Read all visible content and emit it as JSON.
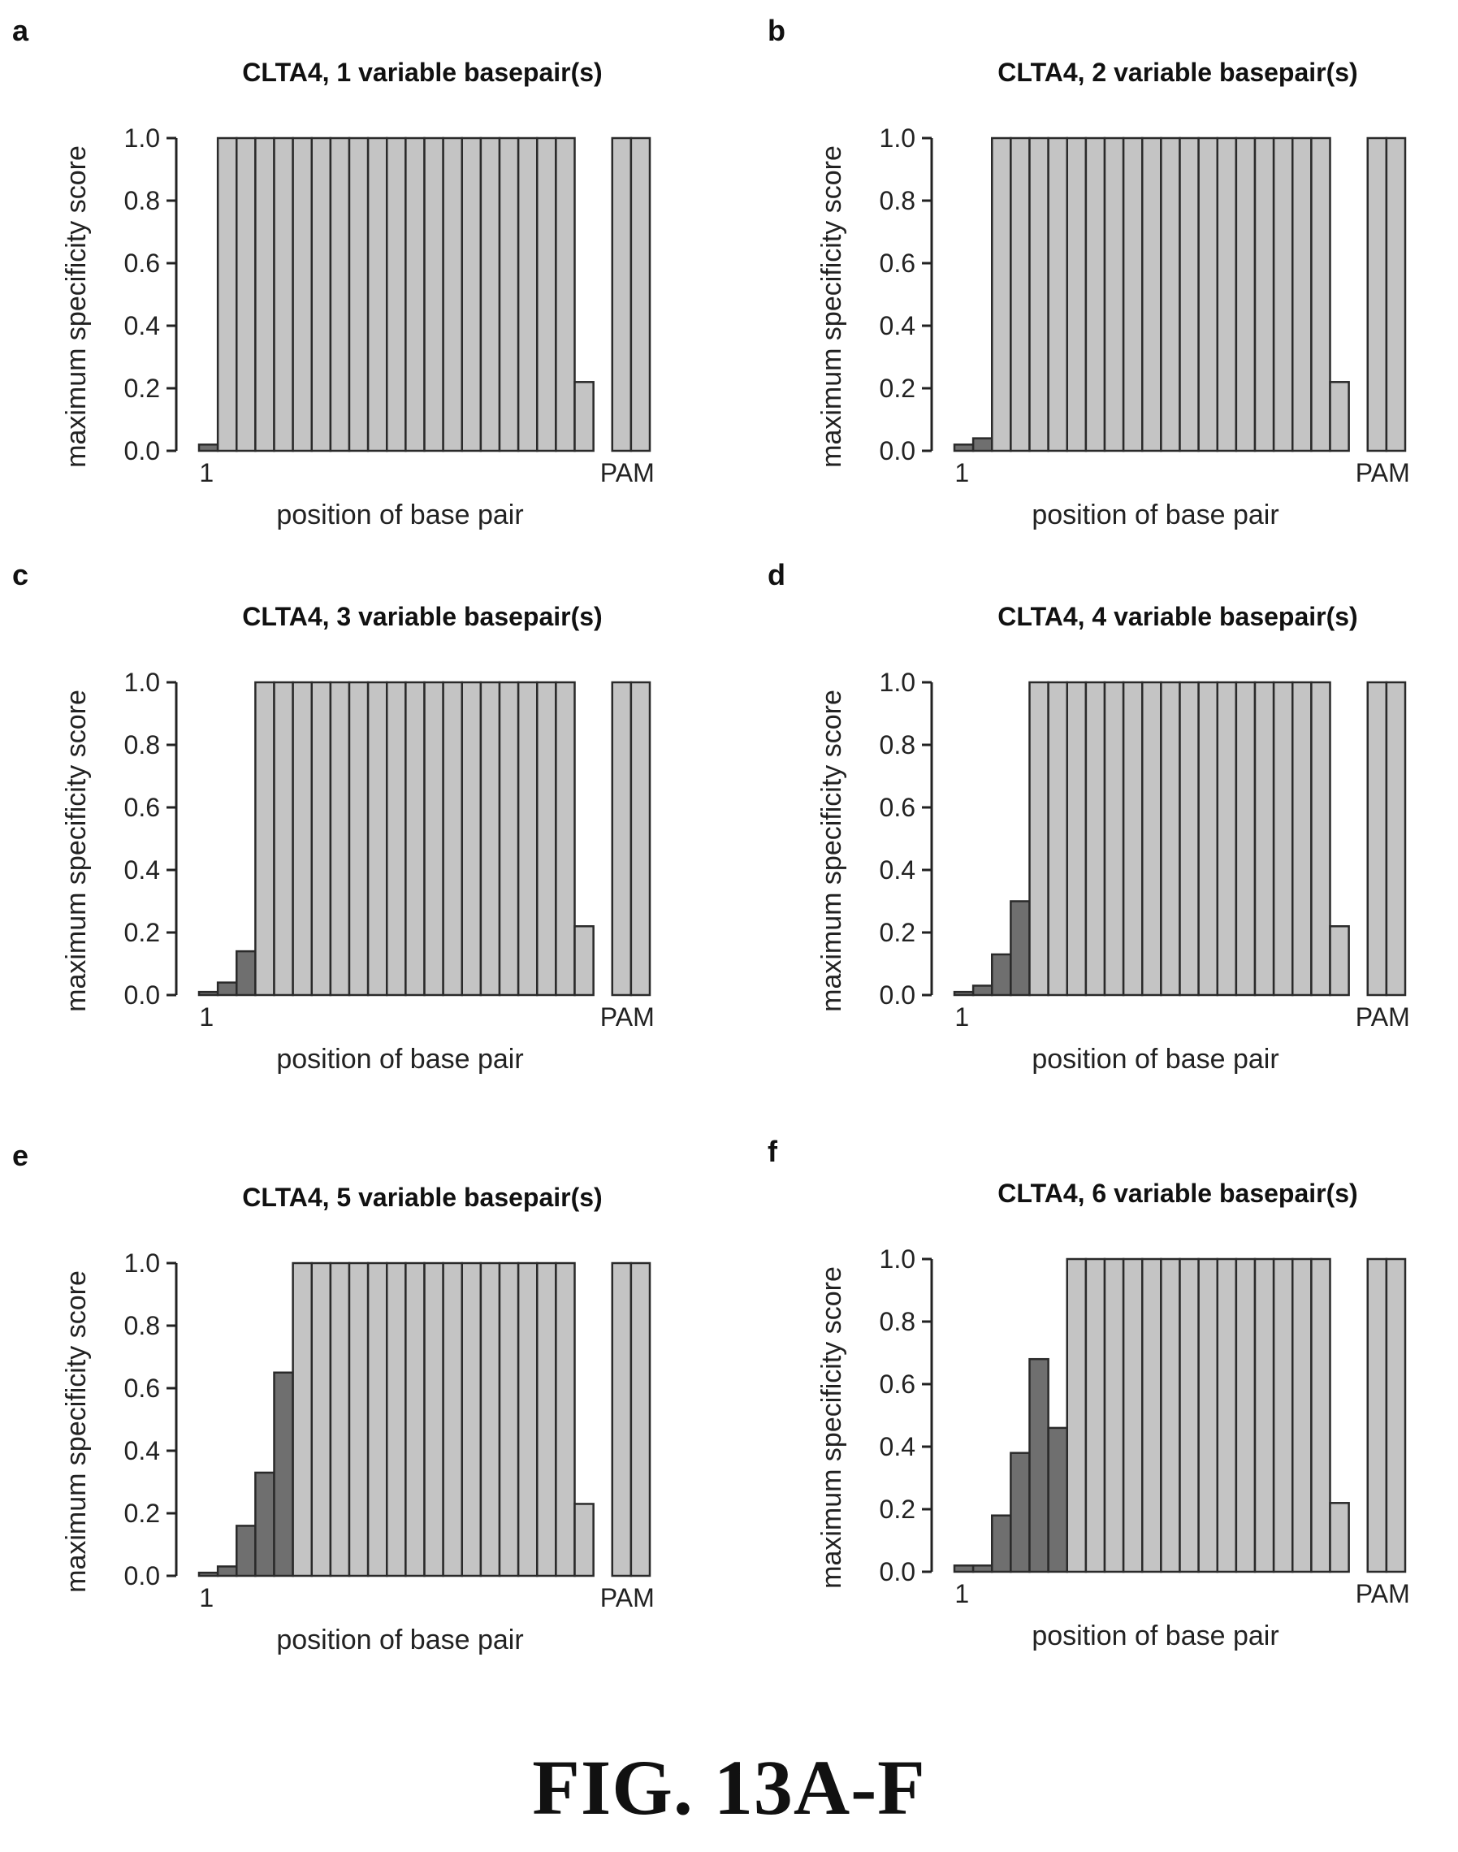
{
  "figure_caption": "FIG. 13A-F",
  "colors": {
    "bar_light": "#c4c4c4",
    "bar_dark": "#6f6f6f",
    "bar_stroke": "#2a2a2a",
    "axis": "#222222"
  },
  "chart_data": [
    {
      "panel": "a",
      "type": "bar",
      "title": "CLTA4, 1 variable basepair(s)",
      "xlabel": "position of base pair",
      "ylabel": "maximum specificity score",
      "x_tick_labels": [
        "1",
        "PAM"
      ],
      "yticks": [
        "0.0",
        "0.2",
        "0.4",
        "0.6",
        "0.8",
        "1.0"
      ],
      "ylim": [
        0,
        1.0
      ],
      "values": [
        0.02,
        1,
        1,
        1,
        1,
        1,
        1,
        1,
        1,
        1,
        1,
        1,
        1,
        1,
        1,
        1,
        1,
        1,
        1,
        1,
        0.22,
        null,
        1,
        1
      ],
      "variable_count": 1
    },
    {
      "panel": "b",
      "type": "bar",
      "title": "CLTA4, 2 variable basepair(s)",
      "xlabel": "position of base pair",
      "ylabel": "maximum specificity score",
      "x_tick_labels": [
        "1",
        "PAM"
      ],
      "yticks": [
        "0.0",
        "0.2",
        "0.4",
        "0.6",
        "0.8",
        "1.0"
      ],
      "ylim": [
        0,
        1.0
      ],
      "values": [
        0.02,
        0.04,
        1,
        1,
        1,
        1,
        1,
        1,
        1,
        1,
        1,
        1,
        1,
        1,
        1,
        1,
        1,
        1,
        1,
        1,
        0.22,
        null,
        1,
        1
      ],
      "variable_count": 2
    },
    {
      "panel": "c",
      "type": "bar",
      "title": "CLTA4, 3 variable basepair(s)",
      "xlabel": "position of base pair",
      "ylabel": "maximum specificity score",
      "x_tick_labels": [
        "1",
        "PAM"
      ],
      "yticks": [
        "0.0",
        "0.2",
        "0.4",
        "0.6",
        "0.8",
        "1.0"
      ],
      "ylim": [
        0,
        1.0
      ],
      "values": [
        0.01,
        0.04,
        0.14,
        1,
        1,
        1,
        1,
        1,
        1,
        1,
        1,
        1,
        1,
        1,
        1,
        1,
        1,
        1,
        1,
        1,
        0.22,
        null,
        1,
        1
      ],
      "variable_count": 3
    },
    {
      "panel": "d",
      "type": "bar",
      "title": "CLTA4, 4 variable basepair(s)",
      "xlabel": "position of base pair",
      "ylabel": "maximum specificity score",
      "x_tick_labels": [
        "1",
        "PAM"
      ],
      "yticks": [
        "0.0",
        "0.2",
        "0.4",
        "0.6",
        "0.8",
        "1.0"
      ],
      "ylim": [
        0,
        1.0
      ],
      "values": [
        0.01,
        0.03,
        0.13,
        0.3,
        1,
        1,
        1,
        1,
        1,
        1,
        1,
        1,
        1,
        1,
        1,
        1,
        1,
        1,
        1,
        1,
        0.22,
        null,
        1,
        1
      ],
      "variable_count": 4
    },
    {
      "panel": "e",
      "type": "bar",
      "title": "CLTA4, 5 variable basepair(s)",
      "xlabel": "position of base pair",
      "ylabel": "maximum specificity score",
      "x_tick_labels": [
        "1",
        "PAM"
      ],
      "yticks": [
        "0.0",
        "0.2",
        "0.4",
        "0.6",
        "0.8",
        "1.0"
      ],
      "ylim": [
        0,
        1.0
      ],
      "values": [
        0.01,
        0.03,
        0.16,
        0.33,
        0.65,
        1,
        1,
        1,
        1,
        1,
        1,
        1,
        1,
        1,
        1,
        1,
        1,
        1,
        1,
        1,
        0.23,
        null,
        1,
        1
      ],
      "variable_count": 5
    },
    {
      "panel": "f",
      "type": "bar",
      "title": "CLTA4, 6 variable basepair(s)",
      "xlabel": "position of base pair",
      "ylabel": "maximum specificity score",
      "x_tick_labels": [
        "1",
        "PAM"
      ],
      "yticks": [
        "0.0",
        "0.2",
        "0.4",
        "0.6",
        "0.8",
        "1.0"
      ],
      "ylim": [
        0,
        1.0
      ],
      "values": [
        0.02,
        0.02,
        0.18,
        0.38,
        0.68,
        0.46,
        1,
        1,
        1,
        1,
        1,
        1,
        1,
        1,
        1,
        1,
        1,
        1,
        1,
        1,
        0.22,
        null,
        1,
        1
      ],
      "variable_count": 6
    }
  ]
}
